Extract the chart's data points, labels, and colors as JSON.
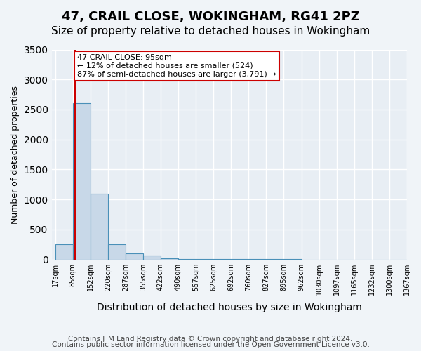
{
  "title": "47, CRAIL CLOSE, WOKINGHAM, RG41 2PZ",
  "subtitle": "Size of property relative to detached houses in Wokingham",
  "xlabel": "Distribution of detached houses by size in Wokingham",
  "ylabel": "Number of detached properties",
  "bin_labels": [
    "17sqm",
    "85sqm",
    "152sqm",
    "220sqm",
    "287sqm",
    "355sqm",
    "422sqm",
    "490sqm",
    "557sqm",
    "625sqm",
    "692sqm",
    "760sqm",
    "827sqm",
    "895sqm",
    "962sqm",
    "1030sqm",
    "1097sqm",
    "1165sqm",
    "1232sqm",
    "1300sqm",
    "1367sqm"
  ],
  "bar_values": [
    250,
    2600,
    1100,
    255,
    100,
    60,
    20,
    10,
    5,
    3,
    2,
    1,
    1,
    1,
    0,
    0,
    0,
    0,
    0,
    0
  ],
  "bar_color": "#c8d8e8",
  "bar_edge_color": "#4a90b8",
  "ylim": [
    0,
    3500
  ],
  "yticks": [
    0,
    500,
    1000,
    1500,
    2000,
    2500,
    3000,
    3500
  ],
  "property_line_x": 1.15,
  "property_line_color": "#cc0000",
  "annotation_text": "47 CRAIL CLOSE: 95sqm\n← 12% of detached houses are smaller (524)\n87% of semi-detached houses are larger (3,791) →",
  "annotation_box_color": "#ffffff",
  "annotation_box_edge_color": "#cc0000",
  "footnote1": "Contains HM Land Registry data © Crown copyright and database right 2024.",
  "footnote2": "Contains public sector information licensed under the Open Government Licence v3.0.",
  "background_color": "#f0f4f8",
  "plot_background_color": "#e8eef4",
  "grid_color": "#ffffff",
  "title_fontsize": 13,
  "subtitle_fontsize": 11,
  "footnote_fontsize": 7.5
}
